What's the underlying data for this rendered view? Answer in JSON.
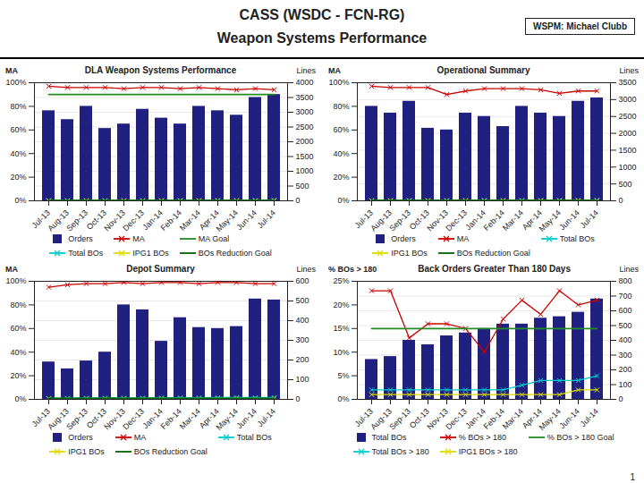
{
  "title": "CASS (WSDC - FCN-RG)",
  "subtitle": "Weapon Systems Performance",
  "annotations": [
    "WSPM: Michael Clubb",
    "1"
  ],
  "chart_data": [
    {
      "type": "bar",
      "title": "DLA Weapon Systems Performance",
      "categories": [
        "Jul-13",
        "Aug-13",
        "Sep-13",
        "Oct-13",
        "Nov-13",
        "Dec-13",
        "Jan-14",
        "Feb-14",
        "Mar-14",
        "Apr-14",
        "May-14",
        "Jun-14",
        "Jul-14"
      ],
      "ylabel": "MA",
      "y2label": "Lines",
      "ylim": [
        0,
        100
      ],
      "yticks": [
        {
          "value": 0,
          "label": "0%"
        },
        {
          "value": 20,
          "label": "20%"
        },
        {
          "value": 40,
          "label": "40%"
        },
        {
          "value": 60,
          "label": "60%"
        },
        {
          "value": 80,
          "label": "80%"
        },
        {
          "value": 100,
          "label": "100%"
        }
      ],
      "y2lim": [
        0,
        4000
      ],
      "y2ticks": [
        0,
        500,
        1000,
        1500,
        2000,
        2500,
        3000,
        3500,
        4000
      ],
      "grid": true,
      "legend": "bottom",
      "series": [
        {
          "name": "Orders",
          "type": "bar",
          "axis": "y2",
          "color": "#1F2080",
          "values": [
            3050,
            2750,
            3200,
            2450,
            2600,
            3100,
            2800,
            2600,
            3200,
            3050,
            2900,
            3500,
            3600
          ]
        },
        {
          "name": "MA",
          "type": "line",
          "marker": "x",
          "color": "#CC0000",
          "values": [
            97,
            96,
            96,
            96,
            95,
            96,
            96,
            95,
            96,
            95,
            94,
            95,
            94
          ]
        },
        {
          "name": "MA Goal",
          "type": "line",
          "color": "#228B22",
          "values": [
            90,
            90,
            90,
            90,
            90,
            90,
            90,
            90,
            90,
            90,
            90,
            90,
            90
          ]
        },
        {
          "name": "Total BOs",
          "type": "line",
          "marker": "x",
          "axis": "y2",
          "color": "#00CCCC",
          "values": [
            7,
            8,
            9,
            10,
            10,
            10,
            11,
            11,
            12,
            13,
            14,
            15,
            18
          ]
        },
        {
          "name": "IPG1 BOs",
          "type": "line",
          "marker": "x",
          "axis": "y2",
          "color": "#DDDD00",
          "values": [
            4,
            4,
            5,
            5,
            5,
            5,
            5,
            6,
            6,
            6,
            6,
            6,
            6
          ]
        },
        {
          "name": "BOs Reduction Goal",
          "type": "line",
          "axis": "y2",
          "color": "#006400",
          "values": [
            8,
            8,
            8,
            8,
            8,
            8,
            8,
            8,
            8,
            8,
            8,
            8,
            8
          ]
        }
      ]
    },
    {
      "type": "bar",
      "title": "Operational Summary",
      "categories": [
        "Jul-13",
        "Aug-13",
        "Sep-13",
        "Oct-13",
        "Nov-13",
        "Dec-13",
        "Jan-14",
        "Feb-14",
        "Mar-14",
        "Apr-14",
        "May-14",
        "Jun-14",
        "Jul-14"
      ],
      "ylabel": "MA",
      "y2label": "Lines",
      "ylim": [
        0,
        100
      ],
      "yticks": [
        {
          "value": 0,
          "label": "0%"
        },
        {
          "value": 20,
          "label": "20%"
        },
        {
          "value": 40,
          "label": "40%"
        },
        {
          "value": 60,
          "label": "60%"
        },
        {
          "value": 80,
          "label": "80%"
        },
        {
          "value": 100,
          "label": "100%"
        }
      ],
      "y2lim": [
        0,
        3500
      ],
      "y2ticks": [
        0,
        500,
        1000,
        1500,
        2000,
        2500,
        3000,
        3500
      ],
      "grid": true,
      "legend": "bottom",
      "series": [
        {
          "name": "Orders",
          "type": "bar",
          "axis": "y2",
          "color": "#1F2080",
          "values": [
            2800,
            2600,
            2950,
            2150,
            2100,
            2600,
            2500,
            2200,
            2800,
            2600,
            2500,
            2950,
            3050
          ]
        },
        {
          "name": "MA",
          "type": "line",
          "marker": "x",
          "color": "#CC0000",
          "values": [
            97,
            96,
            96,
            96,
            90,
            93,
            95,
            95,
            95,
            94,
            91,
            93,
            93
          ]
        },
        {
          "name": "Total BOs",
          "type": "line",
          "marker": "x",
          "axis": "y2",
          "color": "#00CCCC",
          "values": [
            7,
            9,
            11,
            11,
            11,
            12,
            13,
            13,
            14,
            15,
            16,
            17,
            20
          ]
        },
        {
          "name": "IPG1 BOs",
          "type": "line",
          "marker": "x",
          "axis": "y2",
          "color": "#DDDD00",
          "values": [
            4,
            4,
            5,
            5,
            5,
            5,
            5,
            6,
            6,
            6,
            6,
            6,
            6
          ]
        },
        {
          "name": "BOs Reduction Goal",
          "type": "line",
          "axis": "y2",
          "color": "#006400",
          "values": [
            8,
            8,
            8,
            8,
            8,
            8,
            8,
            8,
            8,
            8,
            8,
            8,
            8
          ]
        }
      ]
    },
    {
      "type": "bar",
      "title": "Depot Summary",
      "categories": [
        "Jul-13",
        "Aug-13",
        "Sep-13",
        "Oct-13",
        "Nov-13",
        "Dec-13",
        "Jan-14",
        "Feb-14",
        "Mar-14",
        "Apr-14",
        "May-14",
        "Jun-14",
        "Jul-14"
      ],
      "ylabel": "MA",
      "y2label": "Lines",
      "ylim": [
        0,
        100
      ],
      "yticks": [
        {
          "value": 0,
          "label": "0%"
        },
        {
          "value": 20,
          "label": "20%"
        },
        {
          "value": 40,
          "label": "40%"
        },
        {
          "value": 60,
          "label": "60%"
        },
        {
          "value": 80,
          "label": "80%"
        },
        {
          "value": 100,
          "label": "100%"
        }
      ],
      "y2lim": [
        0,
        600
      ],
      "y2ticks": [
        0,
        100,
        200,
        300,
        400,
        500,
        600
      ],
      "grid": true,
      "legend": "bottom",
      "series": [
        {
          "name": "Orders",
          "type": "bar",
          "axis": "y2",
          "color": "#1F2080",
          "values": [
            190,
            155,
            195,
            240,
            480,
            455,
            295,
            415,
            365,
            360,
            370,
            510,
            505
          ]
        },
        {
          "name": "MA",
          "type": "line",
          "marker": "x",
          "color": "#CC0000",
          "values": [
            95,
            97,
            98,
            98,
            99,
            98,
            99,
            99,
            98,
            99,
            99,
            98,
            98
          ]
        },
        {
          "name": "Total BOs",
          "type": "line",
          "marker": "x",
          "axis": "y2",
          "color": "#00CCCC",
          "values": [
            5,
            6,
            7,
            7,
            7,
            7,
            8,
            8,
            8,
            9,
            9,
            9,
            9
          ]
        },
        {
          "name": "IPG1 BOs",
          "type": "line",
          "marker": "x",
          "axis": "y2",
          "color": "#DDDD00",
          "values": [
            3,
            3,
            3,
            3,
            3,
            3,
            3,
            3,
            3,
            3,
            3,
            3,
            3
          ]
        },
        {
          "name": "BOs Reduction Goal",
          "type": "line",
          "axis": "y2",
          "color": "#006400",
          "values": [
            5,
            5,
            5,
            5,
            5,
            5,
            5,
            5,
            5,
            5,
            5,
            5,
            5
          ]
        }
      ]
    },
    {
      "type": "bar",
      "title": "Back Orders Greater Than 180 Days",
      "categories": [
        "Jul-13",
        "Aug-13",
        "Sep-13",
        "Oct-13",
        "Nov-13",
        "Dec-13",
        "Jan-14",
        "Feb-14",
        "Mar-14",
        "Apr-14",
        "May-14",
        "Jun-14",
        "Jul-14"
      ],
      "ylabel": "% BOs > 180",
      "y2label": "Lines",
      "ylim": [
        0,
        25
      ],
      "yticks": [
        {
          "value": 0,
          "label": "0%"
        },
        {
          "value": 5,
          "label": "5%"
        },
        {
          "value": 10,
          "label": "10%"
        },
        {
          "value": 15,
          "label": "15%"
        },
        {
          "value": 20,
          "label": "20%"
        },
        {
          "value": 25,
          "label": "25%"
        }
      ],
      "y2lim": [
        0,
        800
      ],
      "y2ticks": [
        0,
        100,
        200,
        300,
        400,
        500,
        600,
        700,
        800
      ],
      "grid": true,
      "legend": "bottom",
      "series": [
        {
          "name": "Total BOs",
          "type": "bar",
          "axis": "y2",
          "color": "#1F2080",
          "values": [
            270,
            290,
            400,
            370,
            430,
            450,
            480,
            510,
            510,
            550,
            560,
            590,
            680
          ]
        },
        {
          "name": "% BOs > 180",
          "type": "line",
          "marker": "x",
          "color": "#CC0000",
          "values": [
            23,
            23,
            13,
            16,
            16,
            15,
            10,
            17,
            21,
            18,
            23,
            20,
            21
          ]
        },
        {
          "name": "% BOs > 180 Goal",
          "type": "line",
          "color": "#228B22",
          "values": [
            15,
            15,
            15,
            15,
            15,
            15,
            15,
            15,
            15,
            15,
            15,
            15,
            15
          ]
        },
        {
          "name": "Total BOs > 180",
          "type": "line",
          "marker": "x",
          "color": "#00CCCC",
          "values": [
            2,
            2,
            2,
            2,
            2,
            2,
            2,
            2,
            3,
            4,
            4,
            4,
            5
          ]
        },
        {
          "name": "IPG1 BOs > 180",
          "type": "line",
          "marker": "x",
          "color": "#DDDD00",
          "values": [
            1,
            1,
            1,
            1,
            1,
            1,
            1,
            1,
            1,
            1,
            1,
            2,
            2
          ]
        }
      ]
    }
  ]
}
